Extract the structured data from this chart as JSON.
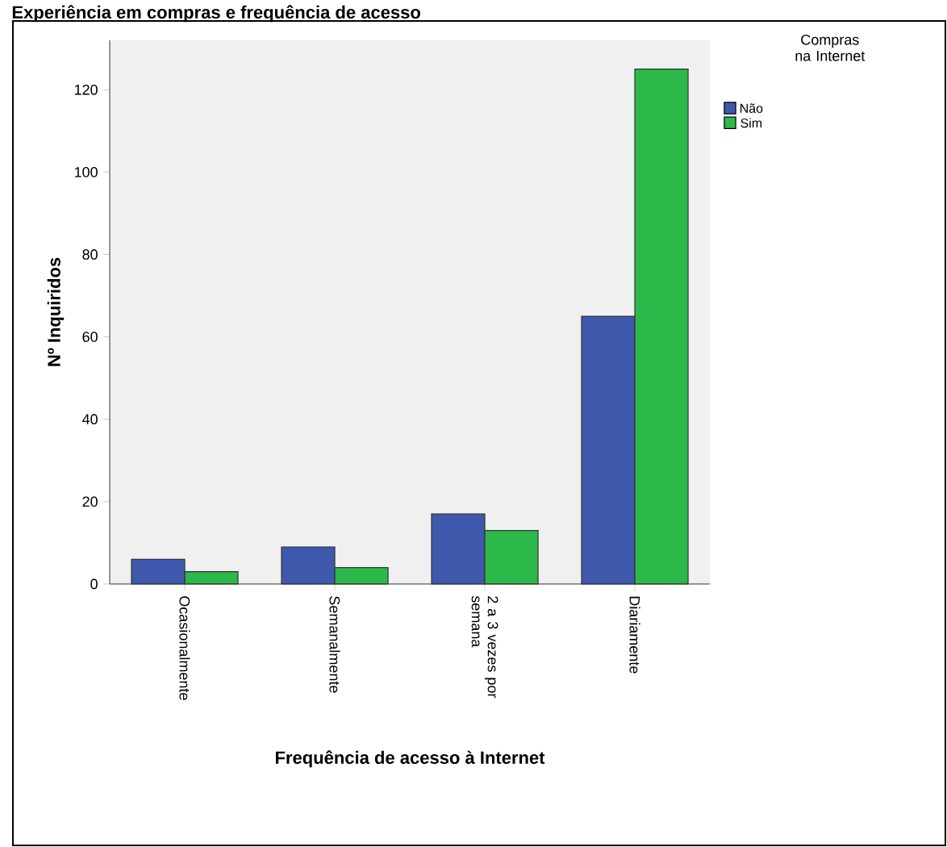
{
  "chart_data": {
    "type": "bar",
    "title": "Experiência em compras e frequência de acesso",
    "xlabel": "Frequência de acesso à Internet",
    "ylabel": "Nº Inquiridos",
    "legend_title": "Compras na Internet",
    "categories": [
      "Ocasionalmente",
      "Semanalmente",
      "2 a 3 vezes por semana",
      "Diariamente"
    ],
    "series": [
      {
        "name": "Não",
        "color": "#3e58ac",
        "values": [
          6,
          9,
          17,
          65
        ]
      },
      {
        "name": "Sim",
        "color": "#2db84a",
        "values": [
          3,
          4,
          13,
          125
        ]
      }
    ],
    "ylim": [
      0,
      132
    ],
    "yticks": [
      0,
      20,
      40,
      60,
      80,
      100,
      120
    ],
    "legend": "top right"
  }
}
